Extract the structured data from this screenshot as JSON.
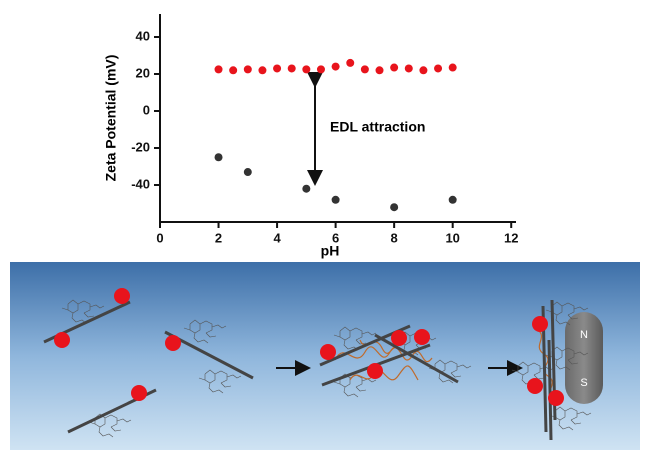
{
  "chart_data": {
    "type": "scatter",
    "x_label": "pH",
    "y_label": "Zeta Potential (mV)",
    "annotation": "EDL attraction",
    "xlim": [
      0,
      12.3
    ],
    "ylim": [
      -60,
      50
    ],
    "xticks": [
      0,
      2,
      4,
      6,
      8,
      10,
      12
    ],
    "yticks": [
      -40,
      -20,
      0,
      20,
      40
    ],
    "series": [
      {
        "color": "#e8141c",
        "x": [
          2,
          2.5,
          3,
          3.5,
          4,
          4.5,
          5,
          5.5,
          6,
          6.5,
          7,
          7.5,
          8,
          8.5,
          9,
          9.5,
          10
        ],
        "values": [
          22.5,
          22,
          22.5,
          22,
          23,
          23,
          22.5,
          22.5,
          24,
          26,
          22.5,
          22,
          23.5,
          23,
          22,
          23,
          23.5
        ]
      },
      {
        "color": "#333333",
        "x": [
          2,
          3,
          5,
          6,
          8,
          10
        ],
        "values": [
          -25,
          -33,
          -42,
          -48,
          -52,
          -48
        ]
      }
    ]
  },
  "diagram": {
    "magnet": {
      "north": "N",
      "south": "S"
    }
  }
}
